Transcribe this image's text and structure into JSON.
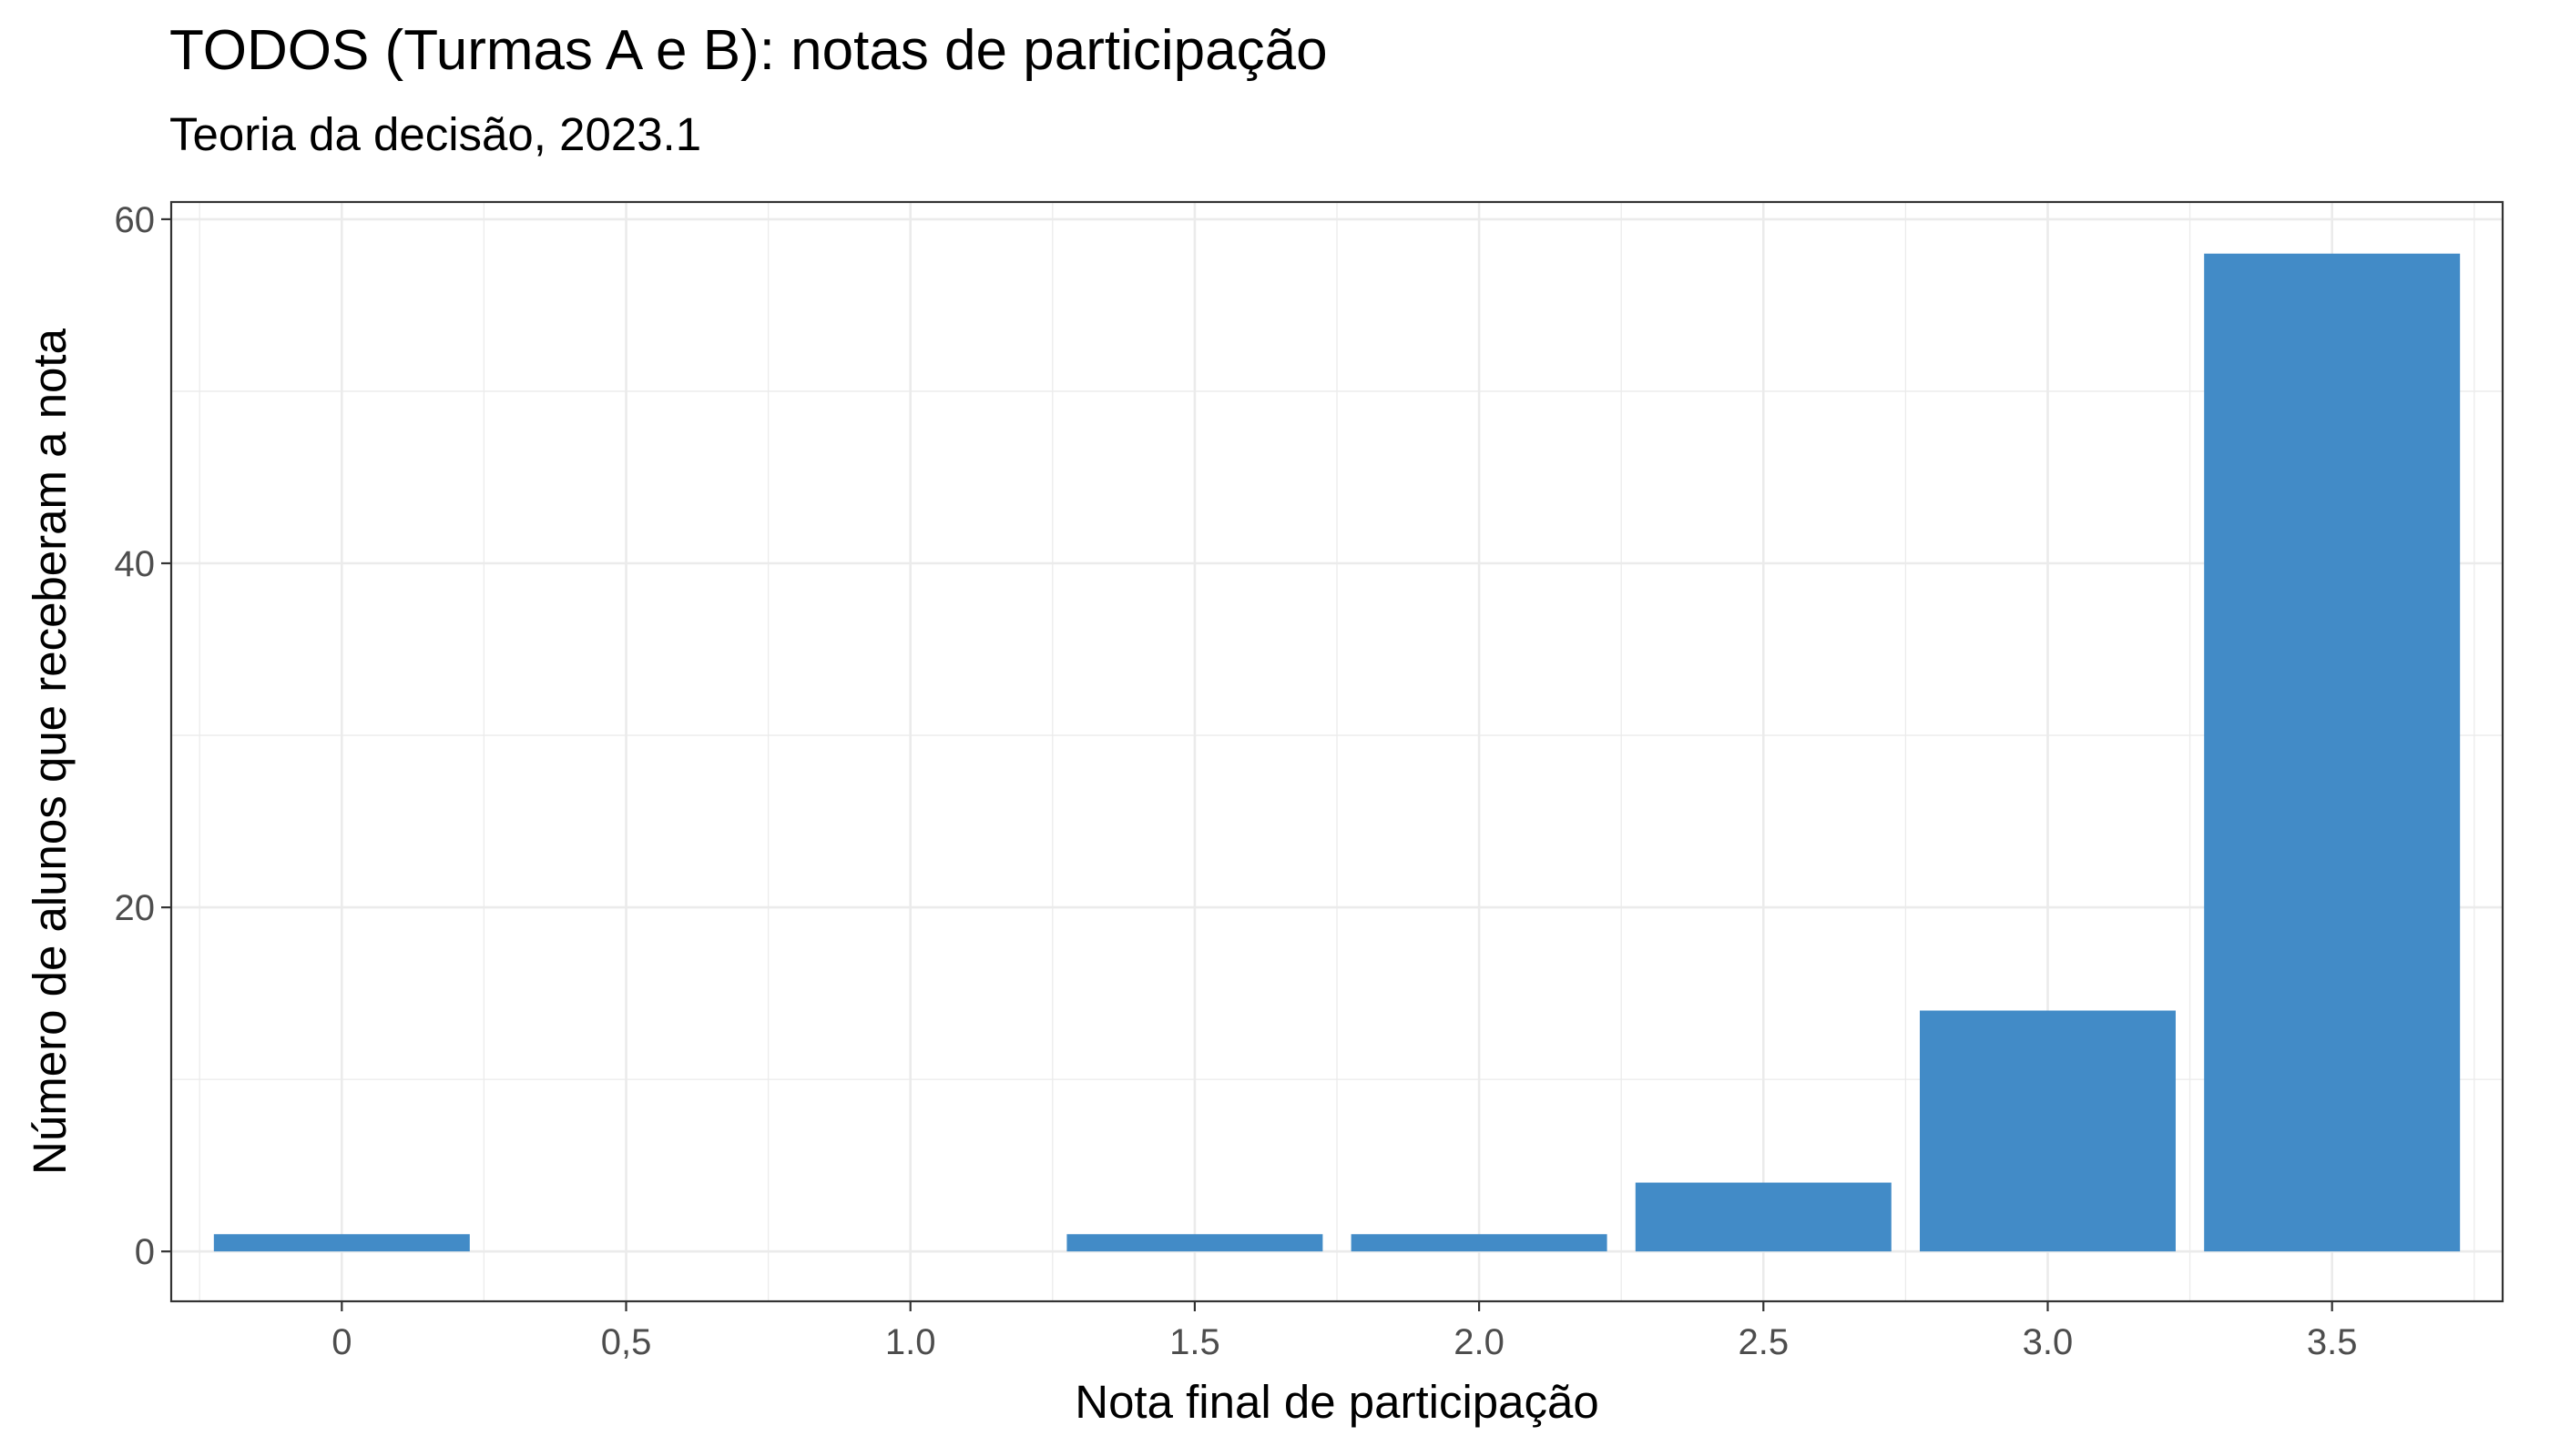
{
  "header": {
    "title": "TODOS (Turmas A e B): notas de participação",
    "subtitle": "Teoria da decisão, 2023.1"
  },
  "chart_data": {
    "type": "bar",
    "title": "TODOS (Turmas A e B): notas de participação",
    "subtitle": "Teoria da decisão, 2023.1",
    "xlabel": "Nota final de participação",
    "ylabel": "Número de alunos que receberam a nota",
    "categories": [
      "0",
      "0,5",
      "1.0",
      "1.5",
      "2.0",
      "2.5",
      "3.0",
      "3.5"
    ],
    "values": [
      1,
      0,
      0,
      1,
      1,
      4,
      14,
      58
    ],
    "yticks": [
      0,
      20,
      40,
      60
    ],
    "ylim": [
      -2.9,
      61
    ],
    "grid": true,
    "bar_color": "#428BC7",
    "theme": "ggplot2 bw"
  }
}
